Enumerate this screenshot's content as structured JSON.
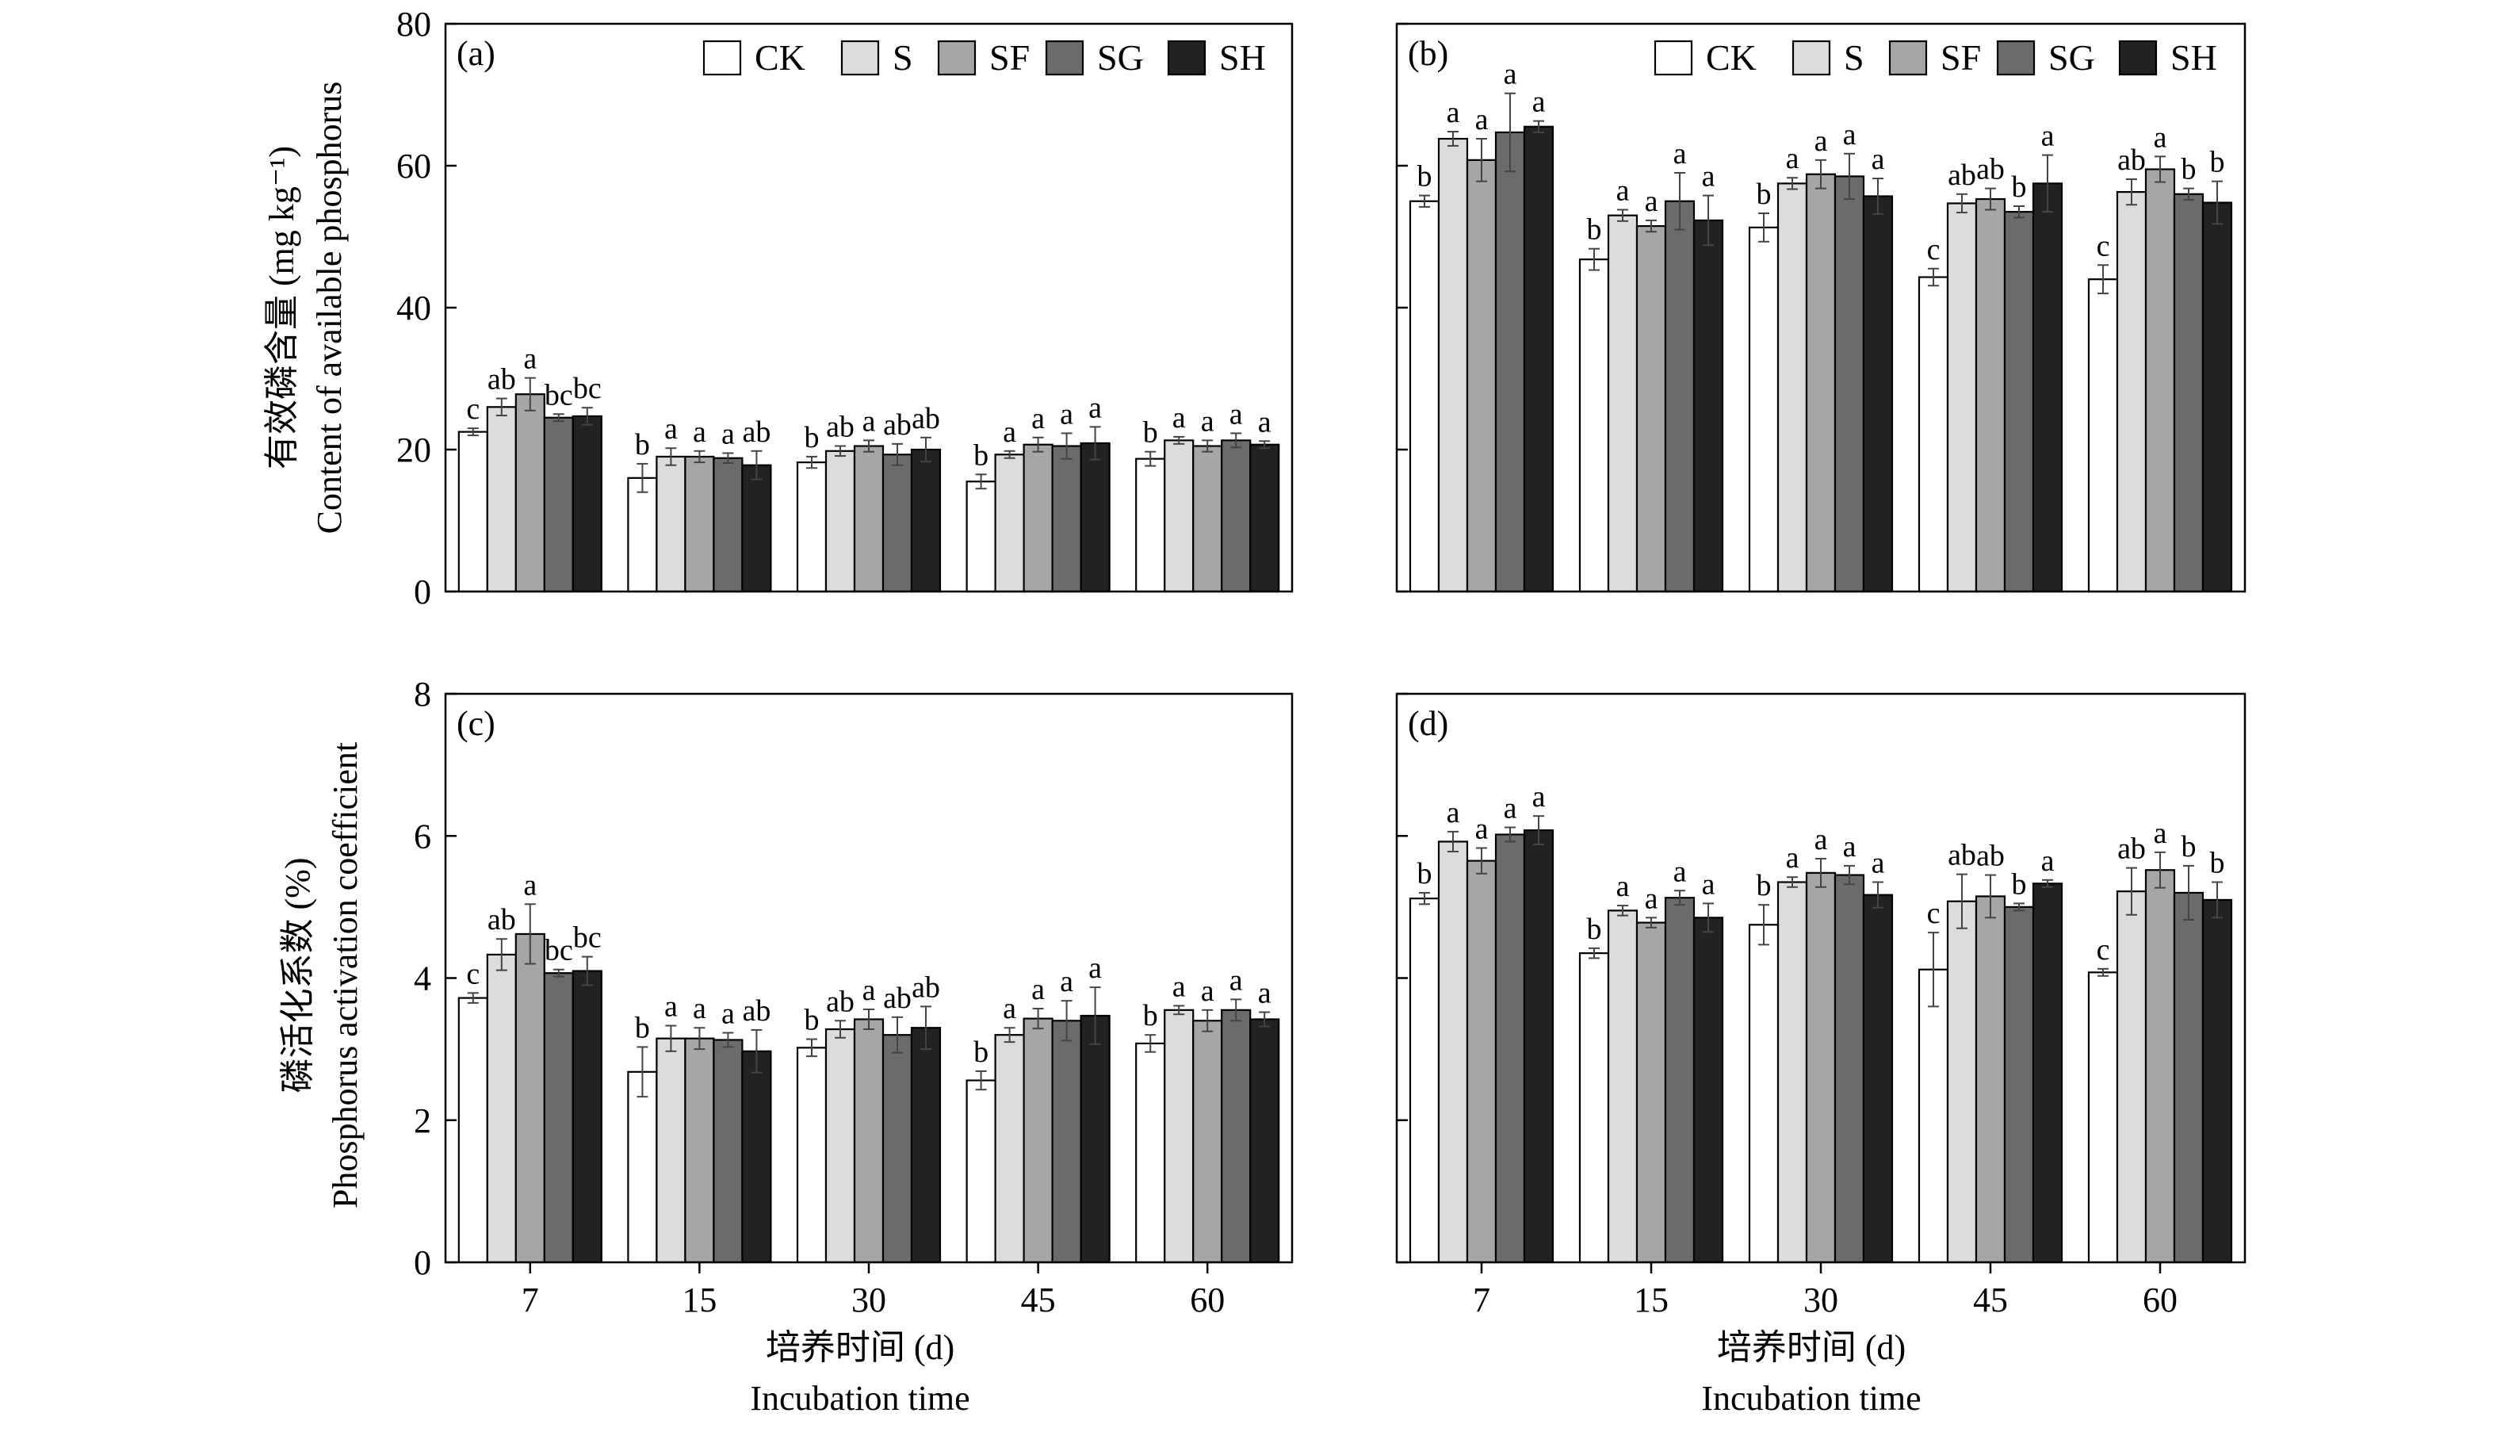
{
  "legend": [
    "CK",
    "S",
    "SF",
    "SG",
    "SH"
  ],
  "colors": [
    "#ffffff",
    "#dcdcdc",
    "#a6a6a6",
    "#6b6b6b",
    "#222222"
  ],
  "xlabel_cn": "培养时间 (d)",
  "xlabel_en": "Incubation time",
  "ylabel_top_cn": "有效磷含量 (mg kg⁻¹)",
  "ylabel_top_en": "Content of available phosphorus",
  "ylabel_bottom_cn": "磷活化系数 (%)",
  "ylabel_bottom_en": "Phosphorus activation coefficient",
  "chart_data": [
    {
      "type": "bar",
      "panel": "(a)",
      "categories": [
        "7",
        "15",
        "30",
        "45",
        "60"
      ],
      "ylim": [
        0,
        80
      ],
      "yticks": [
        0,
        20,
        40,
        60,
        80
      ],
      "legend_placement": "top-right",
      "series": [
        {
          "name": "CK",
          "values": [
            22.5,
            16.0,
            18.2,
            15.5,
            18.7
          ],
          "errors": [
            0.5,
            2.0,
            0.8,
            1.0,
            1.0
          ],
          "letters": [
            "c",
            "b",
            "b",
            "b",
            "b"
          ]
        },
        {
          "name": "S",
          "values": [
            26.0,
            19.0,
            19.8,
            19.3,
            21.3
          ],
          "errors": [
            1.2,
            1.2,
            0.7,
            0.5,
            0.5
          ],
          "letters": [
            "ab",
            "a",
            "ab",
            "a",
            "a"
          ]
        },
        {
          "name": "SF",
          "values": [
            27.8,
            19.0,
            20.5,
            20.7,
            20.5
          ],
          "errors": [
            2.3,
            0.8,
            0.8,
            1.0,
            0.8
          ],
          "letters": [
            "a",
            "a",
            "a",
            "a",
            "a"
          ]
        },
        {
          "name": "SG",
          "values": [
            24.5,
            18.8,
            19.3,
            20.5,
            21.3
          ],
          "errors": [
            0.5,
            0.7,
            1.5,
            1.8,
            1.0
          ],
          "letters": [
            "bc",
            "a",
            "ab",
            "a",
            "a"
          ]
        },
        {
          "name": "SH",
          "values": [
            24.7,
            17.8,
            20.0,
            20.9,
            20.7
          ],
          "errors": [
            1.2,
            2.0,
            1.7,
            2.3,
            0.5
          ],
          "letters": [
            "bc",
            "ab",
            "ab",
            "a",
            "a"
          ]
        }
      ]
    },
    {
      "type": "bar",
      "panel": "(b)",
      "categories": [
        "7",
        "15",
        "30",
        "45",
        "60"
      ],
      "ylim": [
        0,
        80
      ],
      "yticks": [
        0,
        20,
        40,
        60,
        80
      ],
      "legend_placement": "top-right",
      "series": [
        {
          "name": "CK",
          "values": [
            55.0,
            46.8,
            51.3,
            44.3,
            44.0
          ],
          "errors": [
            0.8,
            1.5,
            2.0,
            1.2,
            2.0
          ],
          "letters": [
            "b",
            "b",
            "b",
            "c",
            "c"
          ]
        },
        {
          "name": "S",
          "values": [
            63.8,
            53.0,
            57.5,
            54.7,
            56.3
          ],
          "errors": [
            1.0,
            0.8,
            0.8,
            1.3,
            1.8
          ],
          "letters": [
            "a",
            "a",
            "a",
            "ab",
            "ab"
          ]
        },
        {
          "name": "SF",
          "values": [
            60.8,
            51.5,
            58.8,
            55.3,
            59.5
          ],
          "errors": [
            3.0,
            0.8,
            2.0,
            1.5,
            1.8
          ],
          "letters": [
            "a",
            "a",
            "a",
            "ab",
            "a"
          ]
        },
        {
          "name": "SG",
          "values": [
            64.7,
            55.0,
            58.5,
            53.5,
            56.0
          ],
          "errors": [
            5.5,
            4.0,
            3.2,
            0.8,
            0.8
          ],
          "letters": [
            "a",
            "a",
            "a",
            "b",
            "b"
          ]
        },
        {
          "name": "SH",
          "values": [
            65.5,
            52.3,
            55.7,
            57.5,
            54.8
          ],
          "errors": [
            0.8,
            3.5,
            2.5,
            4.0,
            3.0
          ],
          "letters": [
            "a",
            "a",
            "a",
            "a",
            "b"
          ]
        }
      ]
    },
    {
      "type": "bar",
      "panel": "(c)",
      "categories": [
        "7",
        "15",
        "30",
        "45",
        "60"
      ],
      "ylim": [
        0,
        8
      ],
      "yticks": [
        0,
        2,
        4,
        6,
        8
      ],
      "series": [
        {
          "name": "CK",
          "values": [
            3.72,
            2.68,
            3.02,
            2.56,
            3.08
          ],
          "errors": [
            0.07,
            0.35,
            0.12,
            0.13,
            0.12
          ],
          "letters": [
            "c",
            "b",
            "b",
            "b",
            "b"
          ]
        },
        {
          "name": "S",
          "values": [
            4.33,
            3.15,
            3.28,
            3.2,
            3.55
          ],
          "errors": [
            0.22,
            0.18,
            0.12,
            0.1,
            0.06
          ],
          "letters": [
            "ab",
            "a",
            "ab",
            "a",
            "a"
          ]
        },
        {
          "name": "SF",
          "values": [
            4.62,
            3.15,
            3.42,
            3.43,
            3.4
          ],
          "errors": [
            0.42,
            0.15,
            0.14,
            0.14,
            0.15
          ],
          "letters": [
            "a",
            "a",
            "a",
            "a",
            "a"
          ]
        },
        {
          "name": "SG",
          "values": [
            4.07,
            3.13,
            3.2,
            3.4,
            3.55
          ],
          "errors": [
            0.05,
            0.1,
            0.25,
            0.28,
            0.15
          ],
          "letters": [
            "bc",
            "a",
            "ab",
            "a",
            "a"
          ]
        },
        {
          "name": "SH",
          "values": [
            4.1,
            2.97,
            3.3,
            3.47,
            3.42
          ],
          "errors": [
            0.2,
            0.3,
            0.3,
            0.4,
            0.1
          ],
          "letters": [
            "bc",
            "ab",
            "ab",
            "a",
            "a"
          ]
        }
      ]
    },
    {
      "type": "bar",
      "panel": "(d)",
      "categories": [
        "7",
        "15",
        "30",
        "45",
        "60"
      ],
      "ylim": [
        0,
        8
      ],
      "yticks": [
        0,
        2,
        4,
        6,
        8
      ],
      "series": [
        {
          "name": "CK",
          "values": [
            5.12,
            4.35,
            4.75,
            4.12,
            4.08
          ],
          "errors": [
            0.08,
            0.07,
            0.28,
            0.52,
            0.05
          ],
          "letters": [
            "b",
            "b",
            "b",
            "c",
            "c"
          ]
        },
        {
          "name": "S",
          "values": [
            5.92,
            4.95,
            5.35,
            5.08,
            5.22
          ],
          "errors": [
            0.14,
            0.07,
            0.07,
            0.38,
            0.33
          ],
          "letters": [
            "a",
            "a",
            "a",
            "ab",
            "ab"
          ]
        },
        {
          "name": "SF",
          "values": [
            5.65,
            4.78,
            5.48,
            5.15,
            5.52
          ],
          "errors": [
            0.18,
            0.07,
            0.2,
            0.3,
            0.25
          ],
          "letters": [
            "a",
            "a",
            "a",
            "ab",
            "a"
          ]
        },
        {
          "name": "SG",
          "values": [
            6.02,
            5.13,
            5.45,
            5.0,
            5.2
          ],
          "errors": [
            0.1,
            0.1,
            0.13,
            0.05,
            0.38
          ],
          "letters": [
            "a",
            "a",
            "a",
            "b",
            "b"
          ]
        },
        {
          "name": "SH",
          "values": [
            6.08,
            4.85,
            5.17,
            5.33,
            5.1
          ],
          "errors": [
            0.2,
            0.2,
            0.18,
            0.05,
            0.25
          ],
          "letters": [
            "a",
            "a",
            "a",
            "a",
            "b"
          ]
        }
      ]
    }
  ]
}
